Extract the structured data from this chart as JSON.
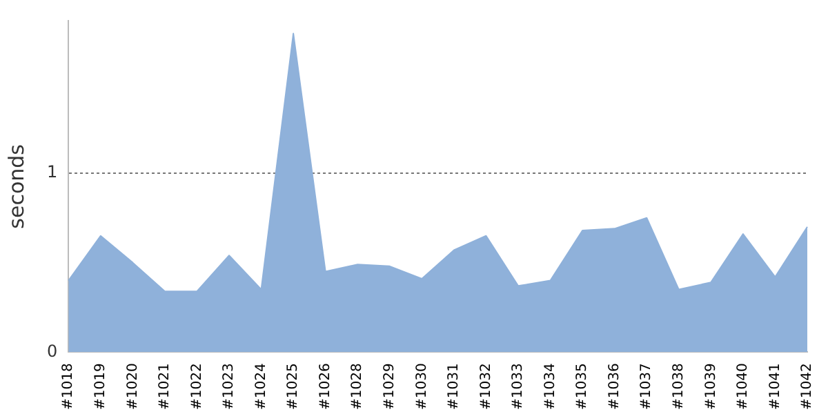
{
  "chart_data": {
    "type": "area",
    "ylabel": "seconds",
    "categories": [
      "#1018",
      "#1019",
      "#1020",
      "#1021",
      "#1022",
      "#1023",
      "#1024",
      "#1025",
      "#1026",
      "#1028",
      "#1029",
      "#1030",
      "#1031",
      "#1032",
      "#1033",
      "#1034",
      "#1035",
      "#1036",
      "#1037",
      "#1038",
      "#1039",
      "#1040",
      "#1041",
      "#1042"
    ],
    "values": [
      0.4,
      0.65,
      0.5,
      0.34,
      0.34,
      0.54,
      0.35,
      1.78,
      0.45,
      0.49,
      0.48,
      0.41,
      0.57,
      0.65,
      0.37,
      0.4,
      0.68,
      0.69,
      0.75,
      0.35,
      0.39,
      0.66,
      0.42,
      0.7
    ],
    "color": "#8fb1da",
    "ylim": [
      0,
      1.85
    ],
    "yticks": [
      0,
      1
    ],
    "grid": "y",
    "legend": false
  }
}
